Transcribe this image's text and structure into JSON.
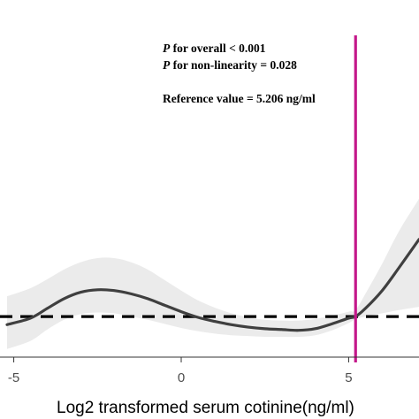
{
  "chart_data": {
    "type": "line",
    "title": "",
    "xlabel": "Log2 transformed serum cotinine(ng/ml)",
    "ylabel": "",
    "xlim": [
      -5.2,
      7.1
    ],
    "ylim": [
      0.5,
      4.9
    ],
    "x_ticks": [
      {
        "value": -5,
        "label": "-5"
      },
      {
        "value": 0,
        "label": "0"
      },
      {
        "value": 5,
        "label": "5"
      }
    ],
    "grid": false,
    "series": [
      {
        "kind": "estimate",
        "color": "#3f3f3f",
        "x": [
          -5.2,
          -4.5,
          -4,
          -3.5,
          -3,
          -2.5,
          -2,
          -1.5,
          -1,
          -0.5,
          0,
          0.5,
          1,
          1.5,
          2,
          2.5,
          3,
          3.5,
          4,
          4.5,
          5,
          5.206,
          5.5,
          6,
          6.5,
          7.1
        ],
        "y": [
          0.9,
          0.98,
          1.1,
          1.22,
          1.3,
          1.33,
          1.32,
          1.28,
          1.22,
          1.14,
          1.06,
          0.99,
          0.94,
          0.9,
          0.87,
          0.85,
          0.84,
          0.83,
          0.85,
          0.91,
          0.98,
          1.0,
          1.1,
          1.32,
          1.6,
          1.95
        ]
      },
      {
        "kind": "confidence_band",
        "color": "#ebebeb",
        "x": [
          -5.2,
          -4.5,
          -4,
          -3.5,
          -3,
          -2.5,
          -2,
          -1.5,
          -1,
          -0.5,
          0,
          0.5,
          1,
          1.5,
          2,
          2.5,
          3,
          3.5,
          4,
          4.5,
          5,
          5.206,
          5.5,
          6,
          6.5,
          7.1
        ],
        "lower": [
          0.6,
          0.7,
          0.84,
          0.96,
          1.03,
          1.05,
          1.04,
          1.0,
          0.96,
          0.91,
          0.86,
          0.82,
          0.79,
          0.77,
          0.76,
          0.75,
          0.75,
          0.75,
          0.77,
          0.83,
          0.92,
          0.97,
          1.0,
          1.04,
          1.08,
          1.12
        ],
        "upper": [
          1.25,
          1.35,
          1.46,
          1.58,
          1.67,
          1.72,
          1.72,
          1.67,
          1.58,
          1.45,
          1.32,
          1.2,
          1.11,
          1.04,
          0.99,
          0.96,
          0.95,
          0.95,
          0.97,
          1.01,
          1.06,
          1.08,
          1.28,
          1.65,
          2.05,
          2.45
        ]
      }
    ],
    "reference_line": {
      "y": 1.0,
      "style": "dashed",
      "color": "#000000"
    },
    "vertical_line": {
      "x": 5.206,
      "color": "#c4178a"
    },
    "annotations": {
      "p_italic": "P",
      "overall_rest": " for overall < 0.001",
      "nonlinearity_rest": " for non-linearity = 0.028",
      "reference": "Reference value = 5.206 ng/ml"
    }
  }
}
